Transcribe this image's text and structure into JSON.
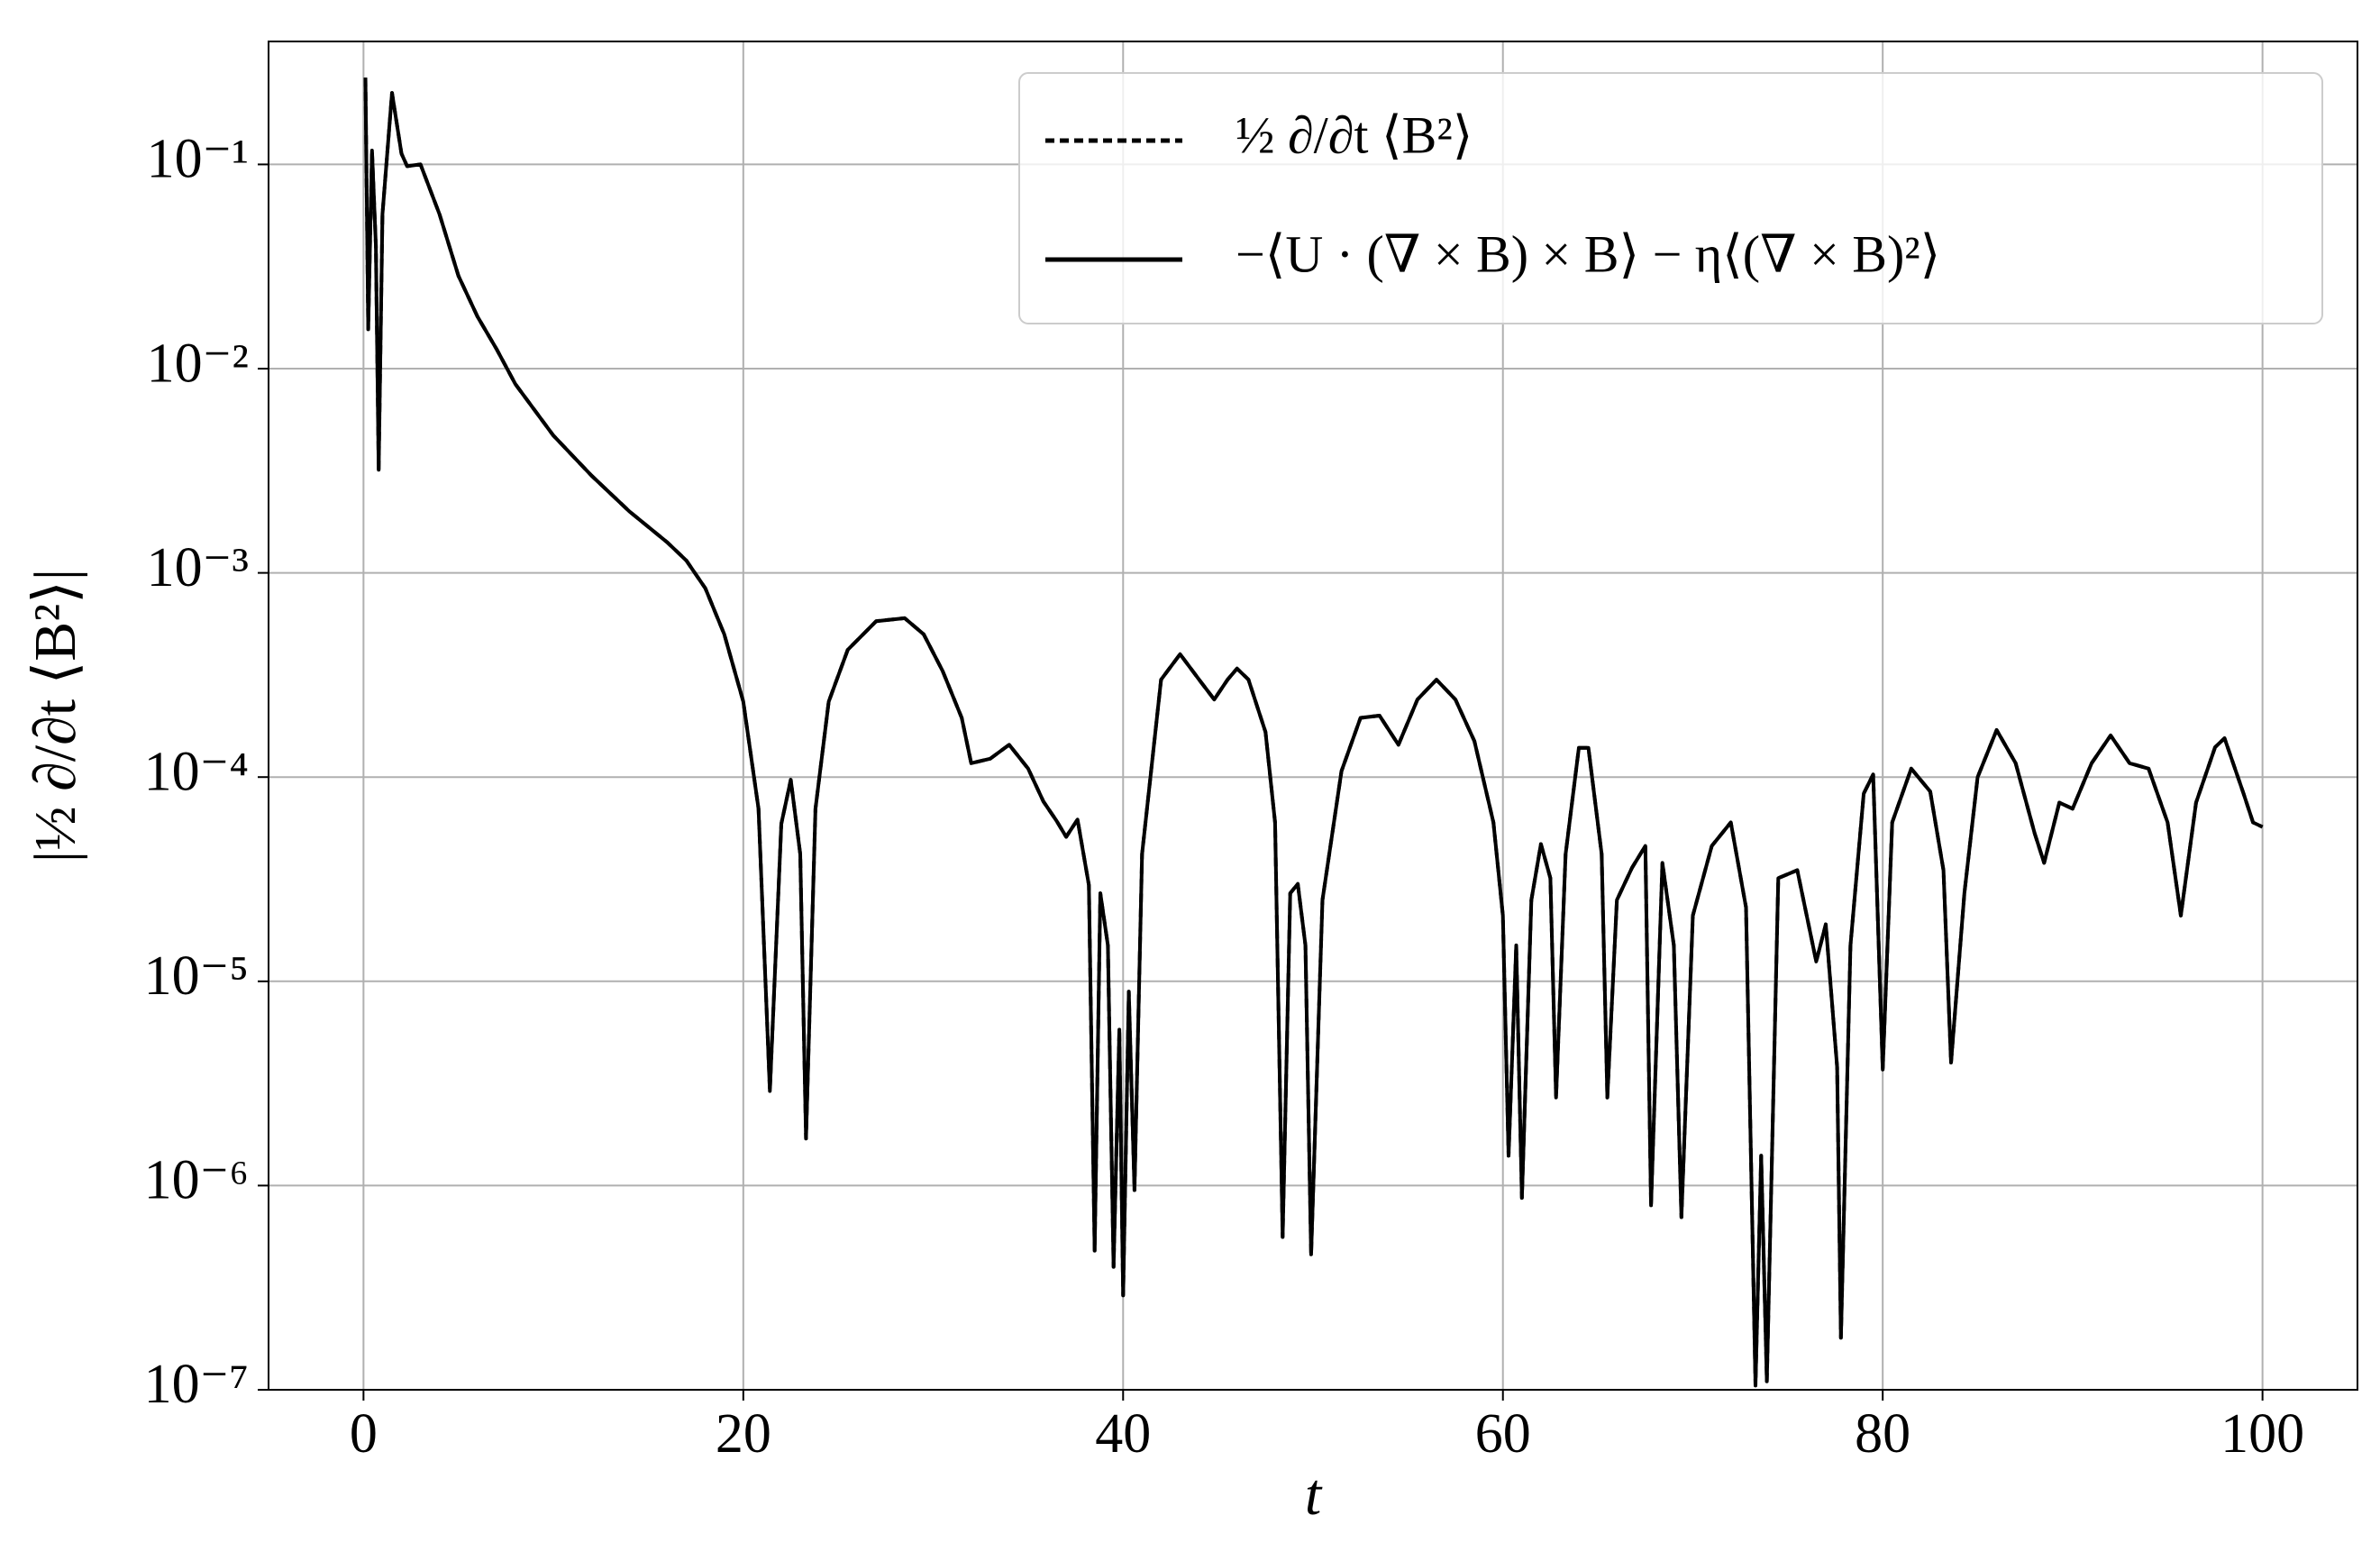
{
  "chart_data": {
    "type": "line",
    "xlabel": "t",
    "ylabel": "|½ ∂/∂t ⟨B²⟩|",
    "log_y": true,
    "grid": true,
    "legend": "upper right",
    "xlim": [
      -5,
      105
    ],
    "ylim": [
      1e-07,
      0.4
    ],
    "xticks": [
      0,
      20,
      40,
      60,
      80,
      100
    ],
    "yticks": [
      {
        "value": 1e-07,
        "label": "10⁻⁷"
      },
      {
        "value": 1e-06,
        "label": "10⁻⁶"
      },
      {
        "value": 1e-05,
        "label": "10⁻⁵"
      },
      {
        "value": 0.0001,
        "label": "10⁻⁴"
      },
      {
        "value": 0.001,
        "label": "10⁻³"
      },
      {
        "value": 0.01,
        "label": "10⁻²"
      },
      {
        "value": 0.1,
        "label": "10⁻¹"
      }
    ],
    "x": [
      0.1,
      0.25,
      0.45,
      0.65,
      0.8,
      1.0,
      1.5,
      2.0,
      2.3,
      3.0,
      4,
      5,
      6,
      7,
      8,
      10,
      12,
      14,
      16,
      17,
      18,
      19,
      20,
      20.8,
      21.4,
      22,
      22.5,
      23,
      23.3,
      23.8,
      24.5,
      25.5,
      27,
      28.5,
      29.5,
      30.5,
      31.5,
      32,
      33,
      34,
      35,
      35.8,
      36.5,
      37,
      37.6,
      38.2,
      38.5,
      38.8,
      39.2,
      39.5,
      39.8,
      40,
      40.3,
      40.6,
      41,
      42,
      43,
      44,
      44.8,
      45.5,
      46,
      46.6,
      47.5,
      48,
      48.4,
      48.8,
      49.2,
      49.6,
      49.9,
      50.5,
      51.5,
      52.5,
      53.5,
      54.5,
      55.5,
      56.5,
      57.5,
      58.5,
      59.5,
      60,
      60.3,
      60.7,
      61,
      61.5,
      62,
      62.5,
      62.8,
      63.3,
      64,
      64.5,
      65.2,
      65.5,
      66,
      66.8,
      67.5,
      67.8,
      68.4,
      69,
      69.4,
      70,
      71,
      72,
      72.8,
      73.3,
      73.6,
      73.9,
      74.5,
      75.5,
      76.5,
      77,
      77.6,
      77.8,
      78.3,
      79,
      79.5,
      80,
      80.5,
      81.5,
      82.5,
      83.2,
      83.6,
      84.3,
      85,
      86,
      87,
      88,
      88.5,
      89.3,
      90,
      91,
      92,
      93,
      94,
      95,
      95.7,
      96.5,
      97.5,
      98,
      99,
      99.5,
      100
    ],
    "series": [
      {
        "name": "½ ∂/∂t ⟨B²⟩",
        "color": "#000000",
        "linestyle": "dashed",
        "values": [
          0.266,
          0.0156,
          0.117,
          0.04,
          0.0032,
          0.057,
          0.224,
          0.113,
          0.098,
          0.1,
          0.057,
          0.0285,
          0.018,
          0.0125,
          0.0084,
          0.0047,
          0.003,
          0.002,
          0.00141,
          0.00115,
          0.00084,
          0.0005,
          0.000234,
          7e-05,
          2.9e-06,
          5.9e-05,
          9.7e-05,
          4.2e-05,
          1.7e-06,
          7e-05,
          0.000234,
          0.00042,
          0.00058,
          0.0006,
          0.0005,
          0.00033,
          0.000195,
          0.000117,
          0.000123,
          0.000144,
          0.00011,
          7.6e-05,
          6.1e-05,
          5.1e-05,
          6.2e-05,
          2.96e-05,
          4.8e-07,
          2.7e-05,
          1.5e-05,
          4e-07,
          5.8e-06,
          2.9e-07,
          8.9e-06,
          9.5e-07,
          4.2e-05,
          0.0003,
          0.0004,
          0.0003,
          0.00024,
          0.0003,
          0.00034,
          0.0003,
          0.000166,
          6e-05,
          5.6e-07,
          2.7e-05,
          3e-05,
          1.5e-05,
          4.6e-07,
          2.5e-05,
          0.000107,
          0.000195,
          0.0002,
          0.000144,
          0.00024,
          0.0003,
          0.00024,
          0.00015,
          6e-05,
          2.1e-05,
          1.4e-06,
          1.5e-05,
          8.7e-07,
          2.5e-05,
          4.7e-05,
          3.2e-05,
          2.7e-06,
          4.2e-05,
          0.000139,
          0.000139,
          4.2e-05,
          2.7e-06,
          2.5e-05,
          3.6e-05,
          4.6e-05,
          8e-07,
          3.8e-05,
          1.5e-05,
          7e-07,
          2.1e-05,
          4.6e-05,
          6e-05,
          2.3e-05,
          1.05e-07,
          1.4e-06,
          1.1e-07,
          3.2e-05,
          3.5e-05,
          1.25e-05,
          1.9e-05,
          3.8e-06,
          1.8e-07,
          1.5e-05,
          8.3e-05,
          0.000103,
          3.7e-06,
          6e-05,
          0.00011,
          8.5e-05,
          3.5e-05,
          4e-06,
          2.7e-05,
          0.0001,
          0.00017,
          0.000117,
          5.3e-05,
          3.8e-05,
          7.5e-05,
          7e-05,
          0.000117,
          0.00016,
          0.000117,
          0.00011,
          6e-05,
          2.1e-05,
          7.5e-05,
          0.00014,
          0.000155,
          8.3e-05,
          6e-05,
          5.7e-05
        ]
      },
      {
        "name": "−⟨U · (∇ × B) × B⟩ − η⟨(∇ × B)²⟩",
        "color": "#000000",
        "linestyle": "solid",
        "values": [
          0.266,
          0.0156,
          0.117,
          0.04,
          0.0032,
          0.057,
          0.224,
          0.113,
          0.098,
          0.1,
          0.057,
          0.0285,
          0.018,
          0.0125,
          0.0084,
          0.0047,
          0.003,
          0.002,
          0.00141,
          0.00115,
          0.00084,
          0.0005,
          0.000234,
          7e-05,
          2.9e-06,
          5.9e-05,
          9.7e-05,
          4.2e-05,
          1.7e-06,
          7e-05,
          0.000234,
          0.00042,
          0.00058,
          0.0006,
          0.0005,
          0.00033,
          0.000195,
          0.000117,
          0.000123,
          0.000144,
          0.00011,
          7.6e-05,
          6.1e-05,
          5.1e-05,
          6.2e-05,
          2.96e-05,
          4.8e-07,
          2.7e-05,
          1.5e-05,
          4e-07,
          5.8e-06,
          2.9e-07,
          8.9e-06,
          9.5e-07,
          4.2e-05,
          0.0003,
          0.0004,
          0.0003,
          0.00024,
          0.0003,
          0.00034,
          0.0003,
          0.000166,
          6e-05,
          5.6e-07,
          2.7e-05,
          3e-05,
          1.5e-05,
          4.6e-07,
          2.5e-05,
          0.000107,
          0.000195,
          0.0002,
          0.000144,
          0.00024,
          0.0003,
          0.00024,
          0.00015,
          6e-05,
          2.1e-05,
          1.4e-06,
          1.5e-05,
          8.7e-07,
          2.5e-05,
          4.7e-05,
          3.2e-05,
          2.7e-06,
          4.2e-05,
          0.000139,
          0.000139,
          4.2e-05,
          2.7e-06,
          2.5e-05,
          3.6e-05,
          4.6e-05,
          8e-07,
          3.8e-05,
          1.5e-05,
          7e-07,
          2.1e-05,
          4.6e-05,
          6e-05,
          2.3e-05,
          1.05e-07,
          1.4e-06,
          1.1e-07,
          3.2e-05,
          3.5e-05,
          1.25e-05,
          1.9e-05,
          3.8e-06,
          1.8e-07,
          1.5e-05,
          8.3e-05,
          0.000103,
          3.7e-06,
          6e-05,
          0.00011,
          8.5e-05,
          3.5e-05,
          4e-06,
          2.7e-05,
          0.0001,
          0.00017,
          0.000117,
          5.3e-05,
          3.8e-05,
          7.5e-05,
          7e-05,
          0.000117,
          0.00016,
          0.000117,
          0.00011,
          6e-05,
          2.1e-05,
          7.5e-05,
          0.00014,
          0.000155,
          8.3e-05,
          6e-05,
          5.7e-05
        ]
      }
    ]
  }
}
